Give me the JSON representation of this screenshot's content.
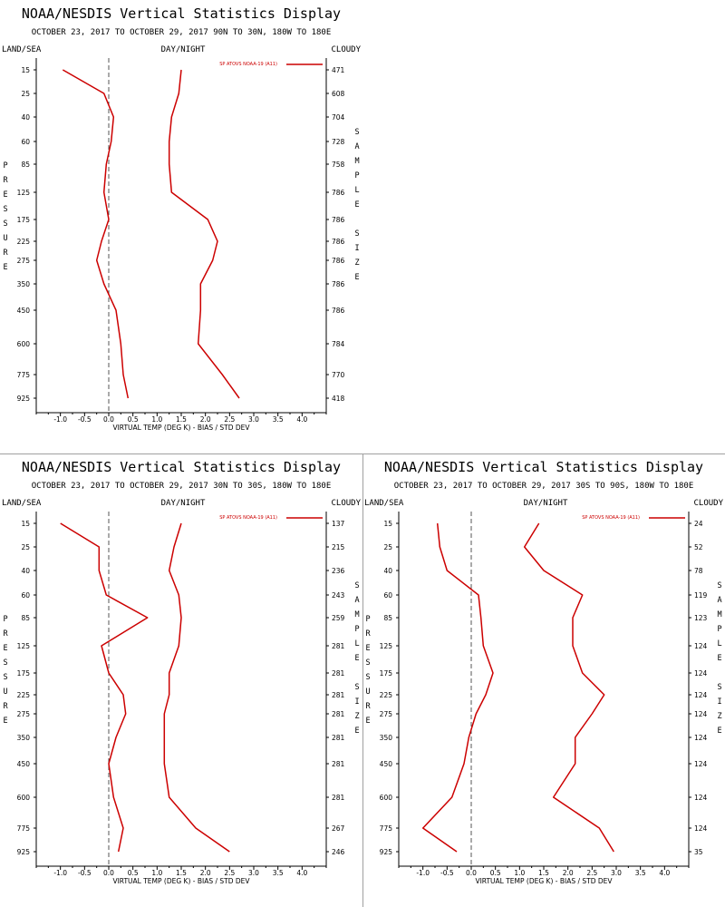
{
  "colors": {
    "series": "#cc0000",
    "axis": "#000000",
    "zero_line": "#555555",
    "divider": "#a0a0a0"
  },
  "chart_data": [
    {
      "type": "line",
      "title": "NOAA/NESDIS Vertical Statistics Display",
      "subtitle": "OCTOBER 23, 2017 TO OCTOBER 29, 2017  90N TO 30N, 180W TO 180E",
      "header_left": "LAND/SEA",
      "header_center": "DAY/NIGHT",
      "header_right": "CLOUDY",
      "legend": "SP ATOVS NOAA-19 (A11)",
      "legend_position": "top-right",
      "xlabel": "VIRTUAL TEMP (DEG K) - BIAS / STD DEV",
      "ylabel": "PRESSURE",
      "y2label": "SAMPLE SIZE",
      "xlim": [
        -1.5,
        4.5
      ],
      "xticks": [
        "-1.0",
        "-0.5",
        "0.0",
        "0.5",
        "1.0",
        "1.5",
        "2.0",
        "2.5",
        "3.0",
        "3.5",
        "4.0"
      ],
      "pressure_levels": [
        "15",
        "25",
        "40",
        "60",
        "85",
        "125",
        "175",
        "225",
        "275",
        "350",
        "450",
        "600",
        "775",
        "925"
      ],
      "sample_size": [
        "471",
        "608",
        "704",
        "728",
        "758",
        "786",
        "786",
        "786",
        "786",
        "786",
        "786",
        "784",
        "770",
        "418"
      ],
      "series": [
        {
          "values": [
            -0.95,
            -0.1,
            0.1,
            0.05,
            -0.05,
            -0.1,
            0.0,
            -0.15,
            -0.25,
            -0.1,
            0.15,
            0.25,
            0.3,
            0.4
          ]
        },
        {
          "values": [
            1.5,
            1.45,
            1.3,
            1.25,
            1.25,
            1.3,
            2.05,
            2.25,
            2.15,
            1.9,
            1.9,
            1.85,
            2.35,
            2.7
          ]
        }
      ]
    },
    {
      "type": "line",
      "title": "NOAA/NESDIS Vertical Statistics Display",
      "subtitle": "OCTOBER 23, 2017 TO OCTOBER 29, 2017  30N TO 30S, 180W TO 180E",
      "header_left": "LAND/SEA",
      "header_center": "DAY/NIGHT",
      "header_right": "CLOUDY",
      "legend": "SP ATOVS NOAA-19 (A11)",
      "legend_position": "top-right",
      "xlabel": "VIRTUAL TEMP (DEG K) - BIAS / STD DEV",
      "ylabel": "PRESSURE",
      "y2label": "SAMPLE SIZE",
      "xlim": [
        -1.5,
        4.5
      ],
      "xticks": [
        "-1.0",
        "-0.5",
        "0.0",
        "0.5",
        "1.0",
        "1.5",
        "2.0",
        "2.5",
        "3.0",
        "3.5",
        "4.0"
      ],
      "pressure_levels": [
        "15",
        "25",
        "40",
        "60",
        "85",
        "125",
        "175",
        "225",
        "275",
        "350",
        "450",
        "600",
        "775",
        "925"
      ],
      "sample_size": [
        "137",
        "215",
        "236",
        "243",
        "259",
        "281",
        "281",
        "281",
        "281",
        "281",
        "281",
        "281",
        "267",
        "246"
      ],
      "series": [
        {
          "values": [
            -1.0,
            -0.2,
            -0.2,
            -0.05,
            0.8,
            -0.15,
            0.0,
            0.3,
            0.35,
            0.15,
            0.0,
            0.1,
            0.3,
            0.2
          ]
        },
        {
          "values": [
            1.5,
            1.35,
            1.25,
            1.45,
            1.5,
            1.45,
            1.25,
            1.25,
            1.15,
            1.15,
            1.15,
            1.25,
            1.8,
            2.5
          ]
        }
      ]
    },
    {
      "type": "line",
      "title": "NOAA/NESDIS Vertical Statistics Display",
      "subtitle": "OCTOBER 23, 2017 TO OCTOBER 29, 2017  30S TO 90S, 180W TO 180E",
      "header_left": "LAND/SEA",
      "header_center": "DAY/NIGHT",
      "header_right": "CLOUDY",
      "legend": "SP ATOVS NOAA-19 (A11)",
      "legend_position": "top-right",
      "xlabel": "VIRTUAL TEMP (DEG K) - BIAS / STD DEV",
      "ylabel": "PRESSURE",
      "y2label": "SAMPLE SIZE",
      "xlim": [
        -1.5,
        4.5
      ],
      "xticks": [
        "-1.0",
        "-0.5",
        "0.0",
        "0.5",
        "1.0",
        "1.5",
        "2.0",
        "2.5",
        "3.0",
        "3.5",
        "4.0"
      ],
      "pressure_levels": [
        "15",
        "25",
        "40",
        "60",
        "85",
        "125",
        "175",
        "225",
        "275",
        "350",
        "450",
        "600",
        "775",
        "925"
      ],
      "sample_size": [
        "24",
        "52",
        "78",
        "119",
        "123",
        "124",
        "124",
        "124",
        "124",
        "124",
        "124",
        "124",
        "124",
        "35"
      ],
      "series": [
        {
          "values": [
            -0.7,
            -0.65,
            -0.5,
            0.15,
            0.2,
            0.25,
            0.45,
            0.3,
            0.1,
            -0.05,
            -0.15,
            -0.4,
            -1.0,
            -0.3
          ]
        },
        {
          "values": [
            1.4,
            1.1,
            1.5,
            2.3,
            2.1,
            2.1,
            2.3,
            2.75,
            2.5,
            2.15,
            2.15,
            1.7,
            2.65,
            2.95
          ]
        }
      ]
    }
  ]
}
